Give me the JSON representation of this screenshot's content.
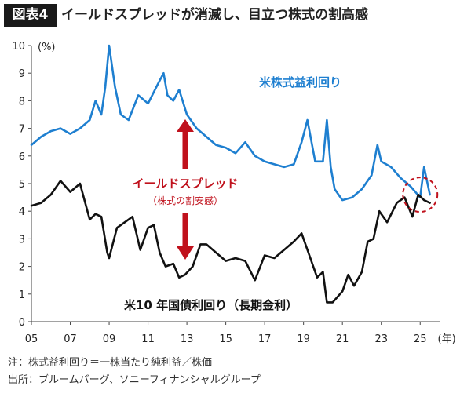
{
  "header": {
    "badge": "図表4",
    "title": "イールドスプレッドが消滅し、目立つ株式の割高感"
  },
  "notes": {
    "note": "注：株式益利回り＝一株当たり純利益／株価",
    "source": "出所：ブルームバーグ、ソニーフィナンシャルグループ"
  },
  "chart_data": {
    "type": "line",
    "title": "",
    "ylabel": "(%)",
    "xlabel": "(年)",
    "ylim": [
      0,
      10
    ],
    "xlim": [
      2005,
      2026
    ],
    "yticks": [
      "0",
      "1",
      "2",
      "3",
      "4",
      "5",
      "6",
      "7",
      "8",
      "9",
      "10"
    ],
    "xticks": [
      "05",
      "07",
      "09",
      "11",
      "13",
      "15",
      "17",
      "19",
      "21",
      "23",
      "25"
    ],
    "annotations": {
      "spread": "イールドスプレッド",
      "spread_sub": "（株式の割安感）"
    },
    "series": [
      {
        "name": "米株式益利回り",
        "color": "#1e7fd0",
        "x": [
          2005.0,
          2005.5,
          2006.0,
          2006.5,
          2007.0,
          2007.5,
          2008.0,
          2008.3,
          2008.6,
          2008.8,
          2009.0,
          2009.3,
          2009.6,
          2010.0,
          2010.5,
          2011.0,
          2011.5,
          2011.8,
          2012.0,
          2012.3,
          2012.6,
          2013.0,
          2013.5,
          2014.0,
          2014.5,
          2015.0,
          2015.5,
          2016.0,
          2016.5,
          2017.0,
          2017.5,
          2018.0,
          2018.5,
          2018.9,
          2019.2,
          2019.6,
          2020.0,
          2020.2,
          2020.4,
          2020.6,
          2021.0,
          2021.5,
          2022.0,
          2022.5,
          2022.8,
          2023.0,
          2023.5,
          2024.0,
          2024.5,
          2025.0,
          2025.2,
          2025.5
        ],
        "values": [
          6.4,
          6.7,
          6.9,
          7.0,
          6.8,
          7.0,
          7.3,
          8.0,
          7.5,
          8.5,
          10.0,
          8.5,
          7.5,
          7.3,
          8.2,
          7.9,
          8.6,
          9.0,
          8.2,
          8.0,
          8.4,
          7.5,
          7.0,
          6.7,
          6.4,
          6.3,
          6.1,
          6.5,
          6.0,
          5.8,
          5.7,
          5.6,
          5.7,
          6.5,
          7.3,
          5.8,
          5.8,
          7.3,
          5.6,
          4.8,
          4.4,
          4.5,
          4.8,
          5.3,
          6.4,
          5.8,
          5.6,
          5.2,
          4.9,
          4.5,
          5.6,
          4.6
        ]
      },
      {
        "name": "米10 年国債利回り（長期金利）",
        "color": "#111111",
        "x": [
          2005.0,
          2005.5,
          2006.0,
          2006.5,
          2007.0,
          2007.5,
          2008.0,
          2008.3,
          2008.6,
          2008.9,
          2009.0,
          2009.4,
          2009.8,
          2010.2,
          2010.6,
          2011.0,
          2011.3,
          2011.6,
          2011.9,
          2012.3,
          2012.6,
          2012.9,
          2013.3,
          2013.7,
          2014.0,
          2014.5,
          2015.0,
          2015.5,
          2016.0,
          2016.5,
          2017.0,
          2017.5,
          2018.0,
          2018.5,
          2018.9,
          2019.3,
          2019.7,
          2020.0,
          2020.2,
          2020.5,
          2021.0,
          2021.3,
          2021.6,
          2022.0,
          2022.3,
          2022.6,
          2022.9,
          2023.3,
          2023.8,
          2024.2,
          2024.6,
          2024.9,
          2025.2,
          2025.5
        ],
        "values": [
          4.2,
          4.3,
          4.6,
          5.1,
          4.7,
          5.0,
          3.7,
          3.9,
          3.8,
          2.5,
          2.3,
          3.4,
          3.6,
          3.8,
          2.6,
          3.4,
          3.5,
          2.5,
          2.0,
          2.1,
          1.6,
          1.7,
          2.0,
          2.8,
          2.8,
          2.5,
          2.2,
          2.3,
          2.2,
          1.5,
          2.4,
          2.3,
          2.6,
          2.9,
          3.2,
          2.4,
          1.6,
          1.8,
          0.7,
          0.7,
          1.1,
          1.7,
          1.3,
          1.8,
          2.9,
          3.0,
          4.0,
          3.6,
          4.3,
          4.5,
          3.8,
          4.6,
          4.4,
          4.3
        ]
      }
    ]
  }
}
